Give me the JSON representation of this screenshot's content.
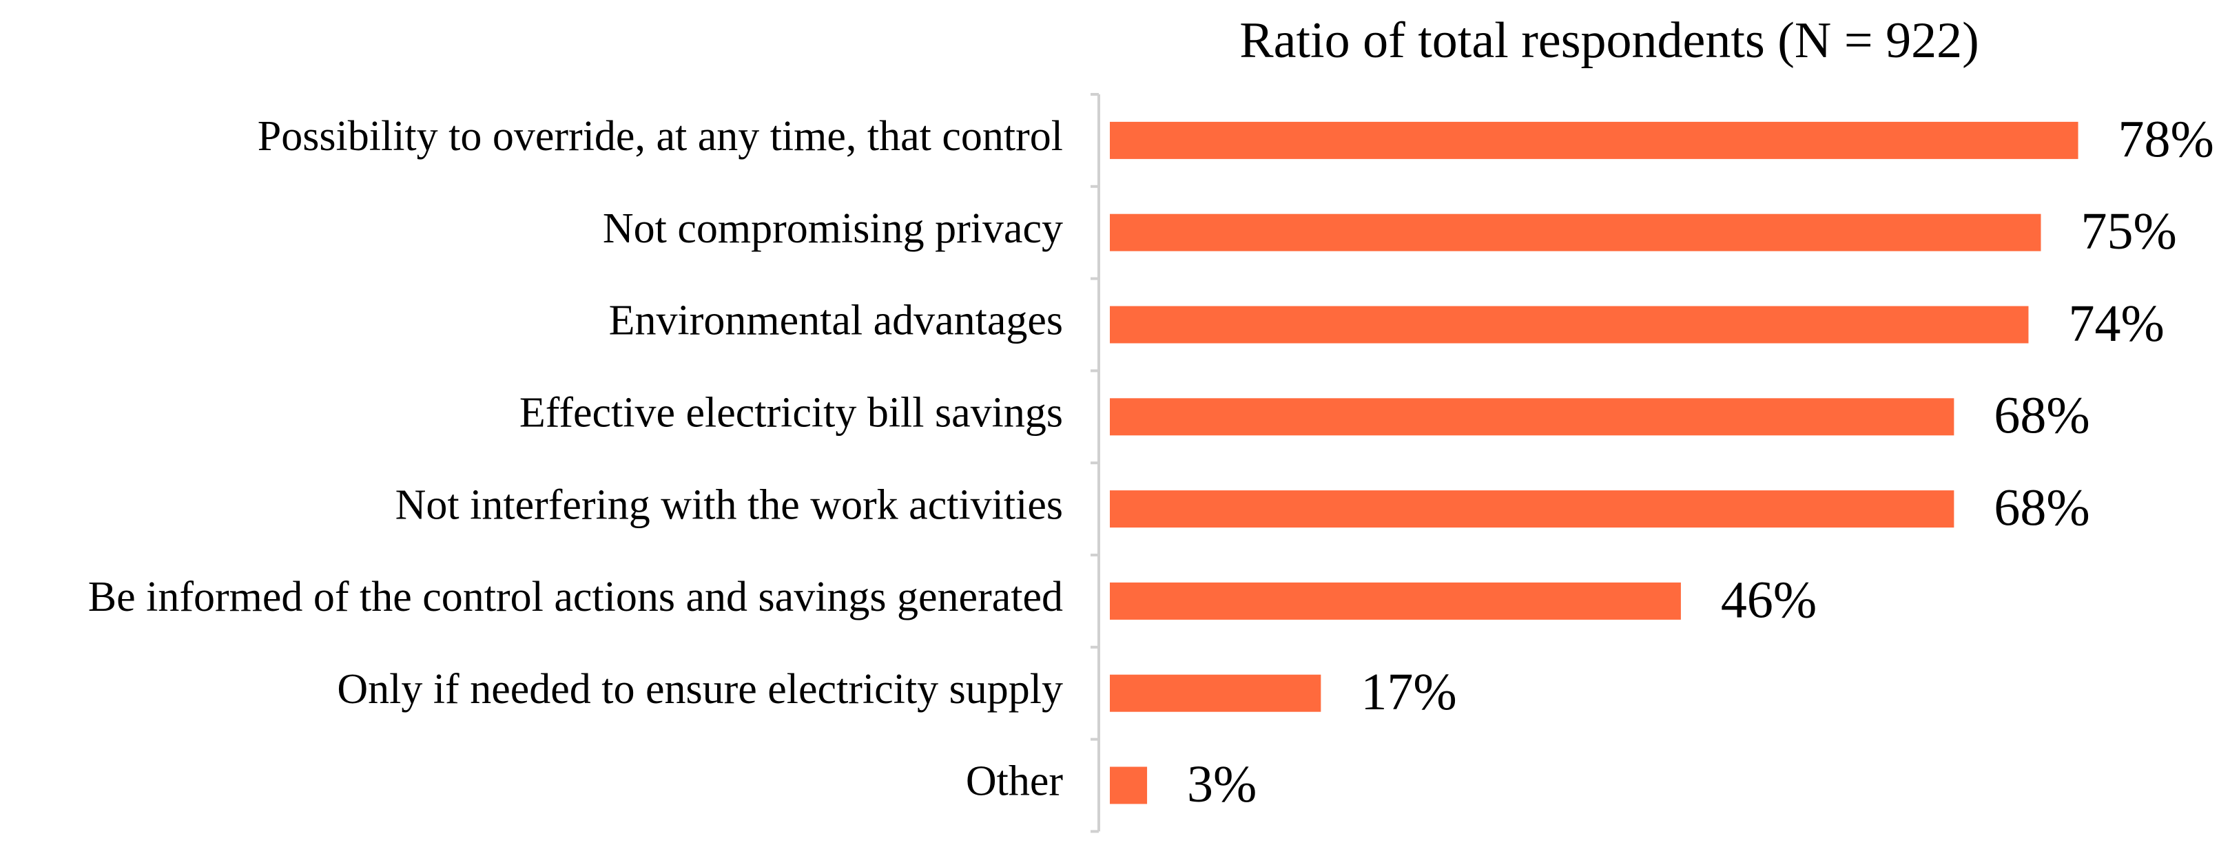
{
  "chart_data": {
    "type": "bar",
    "orientation": "horizontal",
    "title": "Ratio of total respondents (N = 922)",
    "categories": [
      "Possibility to override, at any time, that control",
      "Not compromising privacy",
      "Environmental advantages",
      "Effective electricity bill savings",
      "Not interfering with the work activities",
      "Be informed of the control actions and savings generated",
      "Only if needed to ensure electricity supply",
      "Other"
    ],
    "values": [
      78,
      75,
      74,
      68,
      68,
      46,
      17,
      3
    ],
    "value_labels": [
      "78%",
      "75%",
      "74%",
      "68%",
      "68%",
      "46%",
      "17%",
      "3%"
    ],
    "color": "#ff6a3d"
  }
}
